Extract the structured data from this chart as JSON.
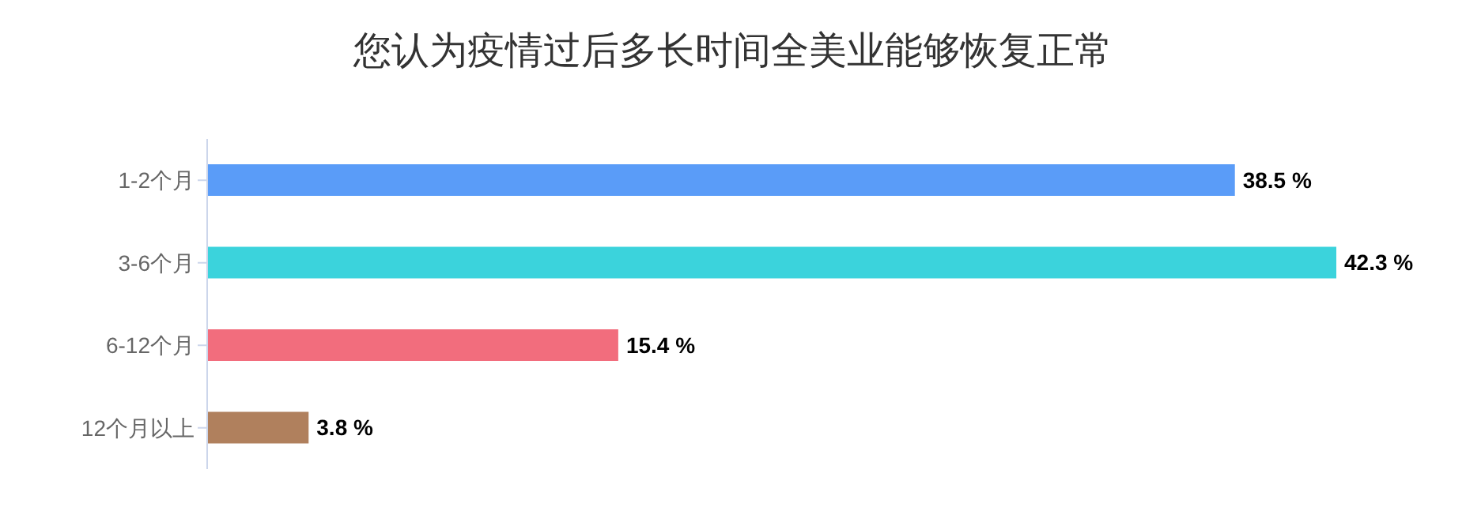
{
  "chart_data": {
    "type": "bar",
    "orientation": "horizontal",
    "title": "您认为疫情过后多长时间全美业能够恢复正常",
    "categories": [
      "1-2个月",
      "3-6个月",
      "6-12个月",
      "12个月以上"
    ],
    "values": [
      38.5,
      42.3,
      15.4,
      3.8
    ],
    "colors": [
      "#5a9cf8",
      "#3bd3dc",
      "#f26d7d",
      "#b0805d"
    ],
    "value_labels": [
      "38.5 %",
      "42.3 %",
      "15.4 %",
      "3.8 %"
    ]
  }
}
